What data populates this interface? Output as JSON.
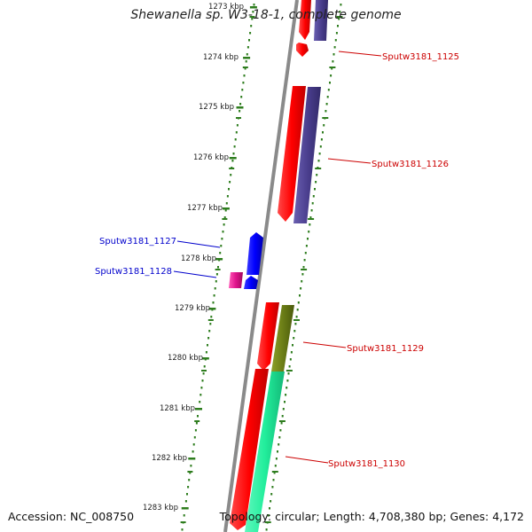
{
  "title": "Shewanella sp. W3-18-1, complete genome",
  "accession": "Accession: NC_008750",
  "topology": "Topology: circular; Length: 4,708,380 bp; Genes: 4,172",
  "scale_labels": [
    "1273 kbp",
    "1274 kbp",
    "1275 kbp",
    "1276 kbp",
    "1277 kbp",
    "1278 kbp",
    "1279 kbp",
    "1280 kbp",
    "1281 kbp",
    "1282 kbp",
    "1283 kbp"
  ],
  "genes": [
    {
      "label": "Sputw3181_1125",
      "color": "#cc0000"
    },
    {
      "label": "Sputw3181_1126",
      "color": "#cc0000"
    },
    {
      "label": "Sputw3181_1127",
      "color": "#0000cc"
    },
    {
      "label": "Sputw3181_1128",
      "color": "#0000cc"
    },
    {
      "label": "Sputw3181_1129",
      "color": "#cc0000"
    },
    {
      "label": "Sputw3181_1130",
      "color": "#cc0000"
    }
  ],
  "colors": {
    "backbone": "#888888",
    "ticks": "#2e7d1e",
    "forward_cds": "#ff0000",
    "forward_feature": "#4b3f8f",
    "reverse_cds": "#0000ff",
    "reverse_feature": "#e0148c",
    "olive_feature": "#6b7d16",
    "teal_feature": "#22ee9c"
  }
}
